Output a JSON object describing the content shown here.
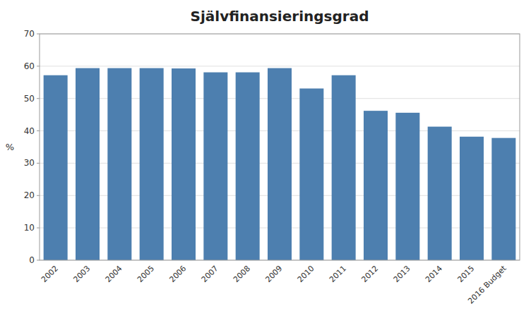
{
  "chart_data": {
    "type": "bar",
    "title": "Självfinansieringsgrad",
    "ylabel": "%",
    "categories": [
      "2002",
      "2003",
      "2004",
      "2005",
      "2006",
      "2007",
      "2008",
      "2009",
      "2010",
      "2011",
      "2012",
      "2013",
      "2014",
      "2015",
      "2016 Budget"
    ],
    "values": [
      57.2,
      59.4,
      59.4,
      59.4,
      59.3,
      58.1,
      58.1,
      59.4,
      53.1,
      57.2,
      46.2,
      45.6,
      41.3,
      38.2,
      37.8
    ],
    "color": "#4d7faf",
    "ylim": [
      0,
      70
    ],
    "yticks": [
      0,
      10,
      20,
      30,
      40,
      50,
      60,
      70
    ],
    "grid": true
  }
}
